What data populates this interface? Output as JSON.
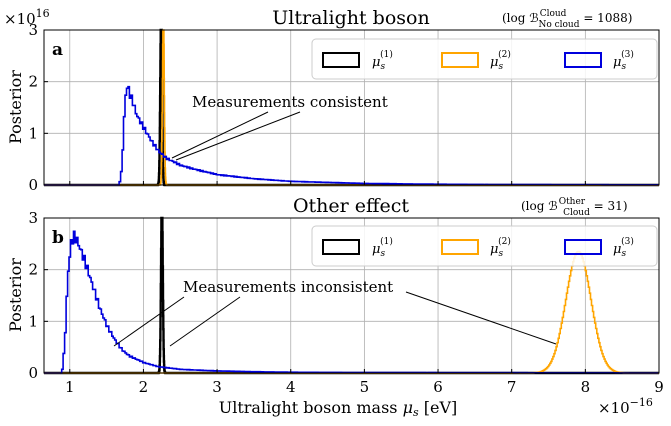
{
  "chart_data": [
    {
      "type": "histogram",
      "panel_label": "a",
      "title": "Ultralight boson",
      "bayes_factor": "(log ℬ",
      "bayes_sup": "Cloud",
      "bayes_sub": "No cloud",
      "bayes_value": " = 1088)",
      "ylabel": "Posterior",
      "y_multiplier": "×10",
      "y_multiplier_exp": "16",
      "ylim": [
        0,
        3
      ],
      "yticks": [
        "0",
        "1",
        "2",
        "3"
      ],
      "xlim": [
        0.65,
        9
      ],
      "grid": true,
      "legend_position": "top-right",
      "annotation": "Measurements consistent",
      "series": [
        {
          "name": "μ",
          "index": "(1)",
          "color": "#000000",
          "shape": "narrow-gaussian",
          "mean": 2.24,
          "sd": 0.012,
          "peak": 3.4
        },
        {
          "name": "μ",
          "index": "(2)",
          "color": "#FFA500",
          "shape": "narrow-gaussian",
          "mean": 2.27,
          "sd": 0.012,
          "peak": 3.4
        },
        {
          "name": "μ",
          "index": "(3)",
          "color": "#0000DD",
          "shape": "histogram",
          "points": [
            [
              0.65,
              0
            ],
            [
              1.65,
              0
            ],
            [
              1.68,
              0.1
            ],
            [
              1.7,
              0.4
            ],
            [
              1.72,
              1.0
            ],
            [
              1.74,
              1.6
            ],
            [
              1.76,
              1.88
            ],
            [
              1.78,
              1.92
            ],
            [
              1.8,
              1.78
            ],
            [
              1.85,
              1.6
            ],
            [
              1.9,
              1.35
            ],
            [
              2.0,
              1.1
            ],
            [
              2.1,
              0.85
            ],
            [
              2.2,
              0.65
            ],
            [
              2.3,
              0.52
            ],
            [
              2.5,
              0.38
            ],
            [
              2.7,
              0.3
            ],
            [
              3.0,
              0.2
            ],
            [
              3.5,
              0.12
            ],
            [
              4.0,
              0.07
            ],
            [
              4.5,
              0.05
            ],
            [
              5.0,
              0.03
            ],
            [
              6.0,
              0.015
            ],
            [
              7.0,
              0.008
            ],
            [
              9.0,
              0.003
            ]
          ]
        }
      ]
    },
    {
      "type": "histogram",
      "panel_label": "b",
      "title": "Other effect",
      "bayes_factor": "(log ℬ",
      "bayes_sup": "Other",
      "bayes_sub": "Cloud",
      "bayes_value": " = 31)",
      "ylabel": "Posterior",
      "ylim": [
        0,
        3
      ],
      "yticks": [
        "0",
        "1",
        "2",
        "3"
      ],
      "xlim": [
        0.65,
        9
      ],
      "xticks": [
        "1",
        "2",
        "3",
        "4",
        "5",
        "6",
        "7",
        "8",
        "9"
      ],
      "xlabel": "Ultralight boson mass ",
      "xlabel_symbol": "μ",
      "xlabel_sub": "s",
      "xlabel_unit": " [eV]",
      "x_multiplier": "×10",
      "x_multiplier_exp": "−16",
      "grid": true,
      "legend_position": "top-right",
      "annotation": "Measurements inconsistent",
      "series": [
        {
          "name": "μ",
          "index": "(1)",
          "color": "#000000",
          "shape": "narrow-gaussian",
          "mean": 2.25,
          "sd": 0.012,
          "peak": 3.4
        },
        {
          "name": "μ",
          "index": "(2)",
          "color": "#FFA500",
          "shape": "gaussian",
          "mean": 7.9,
          "sd": 0.17,
          "peak": 2.35
        },
        {
          "name": "μ",
          "index": "(3)",
          "color": "#0000DD",
          "shape": "histogram",
          "points": [
            [
              0.65,
              0
            ],
            [
              0.88,
              0
            ],
            [
              0.9,
              0.15
            ],
            [
              0.93,
              0.8
            ],
            [
              0.96,
              1.8
            ],
            [
              1.0,
              2.45
            ],
            [
              1.04,
              2.65
            ],
            [
              1.08,
              2.6
            ],
            [
              1.12,
              2.45
            ],
            [
              1.2,
              2.15
            ],
            [
              1.3,
              1.7
            ],
            [
              1.4,
              1.25
            ],
            [
              1.5,
              0.9
            ],
            [
              1.6,
              0.65
            ],
            [
              1.7,
              0.45
            ],
            [
              1.8,
              0.33
            ],
            [
              2.0,
              0.2
            ],
            [
              2.2,
              0.12
            ],
            [
              2.5,
              0.07
            ],
            [
              3.0,
              0.04
            ],
            [
              3.5,
              0.025
            ],
            [
              4.0,
              0.015
            ],
            [
              5.0,
              0.008
            ],
            [
              9.0,
              0.002
            ]
          ]
        }
      ]
    }
  ]
}
